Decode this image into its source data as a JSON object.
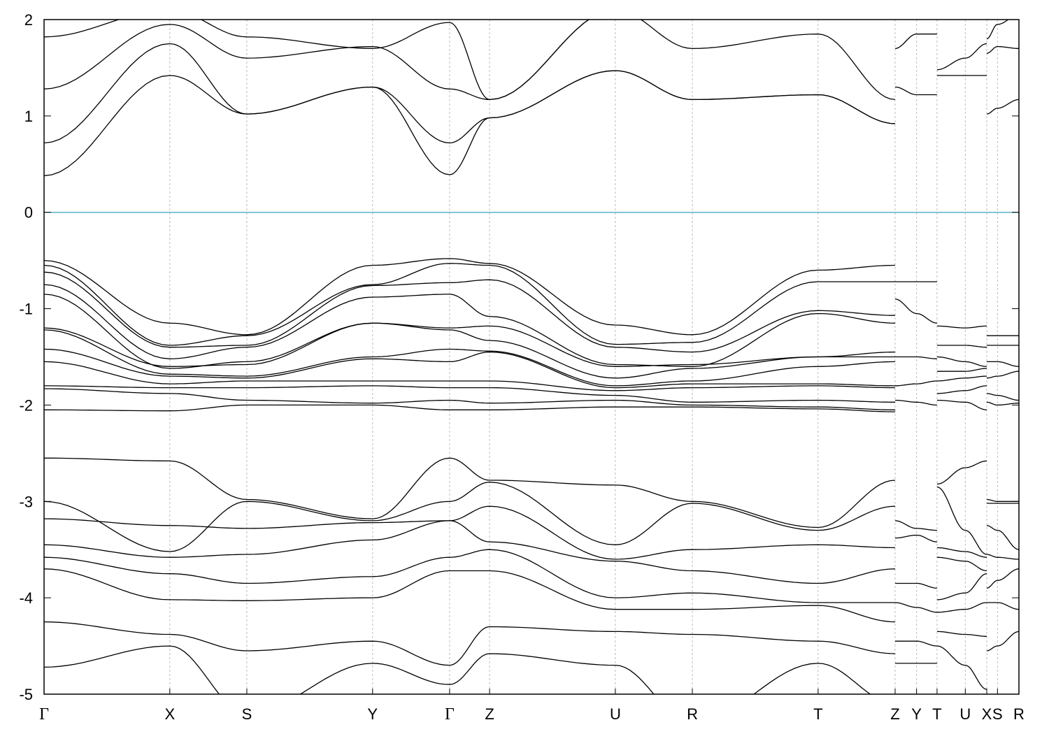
{
  "chart_data": {
    "type": "line",
    "title": "",
    "xlabel": "",
    "ylabel": "",
    "ylim": [
      -5,
      2
    ],
    "yticks": [
      2,
      1,
      0,
      -1,
      -2,
      -3,
      -4,
      -5
    ],
    "grid": "vertical dashed lines at high-symmetry k-points",
    "fermi_level": {
      "value": 0,
      "color": "#5ab4c8"
    },
    "line_color": "#000000",
    "kpoints": [
      {
        "label": "Γ",
        "x": 0.0
      },
      {
        "label": "X",
        "x": 0.129
      },
      {
        "label": "S",
        "x": 0.208
      },
      {
        "label": "Y",
        "x": 0.337
      },
      {
        "label": "Γ",
        "x": 0.416
      },
      {
        "label": "Z",
        "x": 0.457
      },
      {
        "label": "U",
        "x": 0.586
      },
      {
        "label": "R",
        "x": 0.665
      },
      {
        "label": "T",
        "x": 0.794
      },
      {
        "label": "Z",
        "x": 0.873
      },
      {
        "label": "Y",
        "x": 0.895
      },
      {
        "label": "T",
        "x": 0.916
      },
      {
        "label": "U",
        "x": 0.945
      },
      {
        "label": "X",
        "x": 0.967
      },
      {
        "label": "S",
        "x": 0.978
      },
      {
        "label": "R",
        "x": 1.0
      }
    ],
    "series": [
      {
        "x": [
          0.0,
          0.129,
          0.208,
          0.337,
          0.416,
          0.457,
          0.586,
          0.665,
          0.794,
          0.873
        ],
        "y": [
          0.38,
          1.42,
          1.02,
          1.3,
          0.39,
          0.98,
          1.47,
          1.17,
          1.22,
          0.92
        ]
      },
      {
        "x": [
          0.0,
          0.129,
          0.208,
          0.337,
          0.416,
          0.457,
          0.586,
          0.665,
          0.794,
          0.873
        ],
        "y": [
          0.72,
          1.75,
          1.02,
          1.3,
          0.72,
          0.98,
          1.47,
          1.17,
          1.22,
          0.92
        ]
      },
      {
        "x": [
          0.0,
          0.129,
          0.208,
          0.337,
          0.416,
          0.457,
          0.586,
          0.665,
          0.794,
          0.873
        ],
        "y": [
          1.28,
          1.95,
          1.6,
          1.72,
          1.28,
          1.17,
          2.1,
          1.7,
          1.85,
          1.17
        ]
      },
      {
        "x": [
          0.0,
          0.129,
          0.208,
          0.337,
          0.416,
          0.457,
          0.586
        ],
        "y": [
          1.82,
          2.1,
          1.82,
          1.7,
          1.97,
          1.17,
          2.1
        ]
      },
      {
        "x": [
          0.0,
          0.129,
          0.208,
          0.337,
          0.416,
          0.457,
          0.586,
          0.665,
          0.794,
          0.873
        ],
        "y": [
          -0.5,
          -1.15,
          -1.27,
          -0.55,
          -0.48,
          -0.53,
          -1.17,
          -1.27,
          -0.6,
          -0.55
        ]
      },
      {
        "x": [
          0.0,
          0.129,
          0.208,
          0.337,
          0.416,
          0.457,
          0.586,
          0.665,
          0.794,
          0.873
        ],
        "y": [
          -0.55,
          -1.38,
          -1.28,
          -0.75,
          -0.53,
          -0.55,
          -1.37,
          -1.35,
          -0.72,
          -0.72
        ]
      },
      {
        "x": [
          0.0,
          0.129,
          0.208,
          0.337,
          0.416,
          0.457,
          0.586,
          0.665,
          0.794,
          0.873
        ],
        "y": [
          -0.62,
          -1.4,
          -1.38,
          -0.76,
          -0.73,
          -0.7,
          -1.4,
          -1.45,
          -1.02,
          -1.07
        ]
      },
      {
        "x": [
          0.0,
          0.129,
          0.208,
          0.337,
          0.416,
          0.457,
          0.586,
          0.665,
          0.794,
          0.873
        ],
        "y": [
          -0.75,
          -1.52,
          -1.4,
          -0.88,
          -0.85,
          -1.08,
          -1.58,
          -1.6,
          -1.05,
          -1.15
        ]
      },
      {
        "x": [
          0.0,
          0.129,
          0.208,
          0.337,
          0.416,
          0.457,
          0.586,
          0.665,
          0.794,
          0.873
        ],
        "y": [
          -0.85,
          -1.62,
          -1.55,
          -1.15,
          -1.2,
          -1.18,
          -1.6,
          -1.58,
          -1.5,
          -1.45
        ]
      },
      {
        "x": [
          0.0,
          0.129,
          0.208,
          0.337,
          0.416,
          0.457,
          0.586,
          0.665,
          0.794,
          0.873
        ],
        "y": [
          -1.2,
          -1.6,
          -1.58,
          -1.15,
          -1.22,
          -1.33,
          -1.72,
          -1.62,
          -1.5,
          -1.5
        ]
      },
      {
        "x": [
          0.0,
          0.129,
          0.208,
          0.337,
          0.416,
          0.457,
          0.586,
          0.665,
          0.794,
          0.873
        ],
        "y": [
          -1.22,
          -1.68,
          -1.7,
          -1.5,
          -1.42,
          -1.44,
          -1.8,
          -1.75,
          -1.6,
          -1.55
        ]
      },
      {
        "x": [
          0.0,
          0.129,
          0.208,
          0.337,
          0.416,
          0.457,
          0.586,
          0.665,
          0.794,
          0.873
        ],
        "y": [
          -1.42,
          -1.7,
          -1.72,
          -1.52,
          -1.55,
          -1.45,
          -1.82,
          -1.78,
          -1.78,
          -1.8
        ]
      },
      {
        "x": [
          0.0,
          0.129,
          0.208,
          0.337,
          0.416,
          0.457,
          0.586,
          0.665,
          0.794,
          0.873
        ],
        "y": [
          -1.55,
          -1.78,
          -1.75,
          -1.75,
          -1.75,
          -1.75,
          -1.85,
          -1.82,
          -1.8,
          -1.82
        ]
      },
      {
        "x": [
          0.0,
          0.129,
          0.208,
          0.337,
          0.416,
          0.457,
          0.586,
          0.665,
          0.794,
          0.873
        ],
        "y": [
          -1.8,
          -1.82,
          -1.82,
          -1.8,
          -1.82,
          -1.82,
          -1.9,
          -1.97,
          -1.95,
          -1.97
        ]
      },
      {
        "x": [
          0.0,
          0.129,
          0.208,
          0.337,
          0.416,
          0.457,
          0.586,
          0.665,
          0.794,
          0.873
        ],
        "y": [
          -1.83,
          -1.88,
          -1.95,
          -1.98,
          -1.95,
          -1.98,
          -1.95,
          -2.0,
          -2.02,
          -2.05
        ]
      },
      {
        "x": [
          0.0,
          0.129,
          0.208,
          0.337,
          0.416,
          0.457,
          0.586,
          0.665,
          0.794,
          0.873
        ],
        "y": [
          -2.05,
          -2.06,
          -2.0,
          -2.0,
          -2.05,
          -2.05,
          -2.02,
          -2.02,
          -2.04,
          -2.07
        ]
      },
      {
        "x": [
          0.0,
          0.129,
          0.208,
          0.337,
          0.416,
          0.457,
          0.586,
          0.665,
          0.794,
          0.873
        ],
        "y": [
          -2.55,
          -2.58,
          -2.98,
          -3.18,
          -2.55,
          -2.78,
          -2.83,
          -3.0,
          -3.27,
          -2.78
        ]
      },
      {
        "x": [
          0.0,
          0.129,
          0.208,
          0.337,
          0.416,
          0.457,
          0.586,
          0.665,
          0.794,
          0.873
        ],
        "y": [
          -3.0,
          -3.52,
          -3.0,
          -3.2,
          -3.0,
          -2.8,
          -3.45,
          -3.02,
          -3.3,
          -3.05
        ]
      },
      {
        "x": [
          0.0,
          0.129,
          0.208,
          0.337,
          0.416,
          0.457,
          0.586,
          0.665,
          0.794,
          0.873
        ],
        "y": [
          -3.18,
          -3.25,
          -3.28,
          -3.22,
          -3.2,
          -3.05,
          -3.6,
          -3.5,
          -3.45,
          -3.48
        ]
      },
      {
        "x": [
          0.0,
          0.129,
          0.208,
          0.337,
          0.416,
          0.457,
          0.586,
          0.665,
          0.794,
          0.873
        ],
        "y": [
          -3.45,
          -3.58,
          -3.55,
          -3.4,
          -3.2,
          -3.42,
          -3.62,
          -3.72,
          -3.85,
          -3.7
        ]
      },
      {
        "x": [
          0.0,
          0.129,
          0.208,
          0.337,
          0.416,
          0.457,
          0.586,
          0.665,
          0.794,
          0.873
        ],
        "y": [
          -3.58,
          -3.75,
          -3.85,
          -3.78,
          -3.58,
          -3.5,
          -4.0,
          -3.95,
          -4.05,
          -4.05
        ]
      },
      {
        "x": [
          0.0,
          0.129,
          0.208,
          0.337,
          0.416,
          0.457,
          0.586,
          0.665,
          0.794,
          0.873
        ],
        "y": [
          -3.7,
          -4.02,
          -4.03,
          -4.0,
          -3.72,
          -3.72,
          -4.12,
          -4.12,
          -4.08,
          -4.25
        ]
      },
      {
        "x": [
          0.0,
          0.129,
          0.208,
          0.337,
          0.416,
          0.457,
          0.586,
          0.665,
          0.794,
          0.873
        ],
        "y": [
          -4.25,
          -4.38,
          -4.55,
          -4.45,
          -4.7,
          -4.3,
          -4.35,
          -4.38,
          -4.45,
          -4.58
        ]
      },
      {
        "x": [
          0.0,
          0.129,
          0.208,
          0.337,
          0.416,
          0.457,
          0.586,
          0.665,
          0.794,
          0.873
        ],
        "y": [
          -4.72,
          -4.5,
          -5.2,
          -4.68,
          -4.9,
          -4.58,
          -4.7,
          -5.3,
          -4.68,
          -5.1
        ]
      },
      {
        "x": [
          0.873,
          0.895,
          0.916
        ],
        "y": [
          1.7,
          1.85,
          1.85
        ]
      },
      {
        "x": [
          0.873,
          0.895,
          0.916
        ],
        "y": [
          1.3,
          1.22,
          1.22
        ]
      },
      {
        "x": [
          0.873,
          0.895,
          0.916
        ],
        "y": [
          -0.72,
          -0.72,
          -0.72
        ]
      },
      {
        "x": [
          0.873,
          0.895,
          0.916
        ],
        "y": [
          -0.9,
          -1.05,
          -1.15
        ]
      },
      {
        "x": [
          0.873,
          0.895,
          0.916
        ],
        "y": [
          -1.5,
          -1.5,
          -1.52
        ]
      },
      {
        "x": [
          0.873,
          0.895,
          0.916
        ],
        "y": [
          -1.8,
          -1.78,
          -1.75
        ]
      },
      {
        "x": [
          0.873,
          0.895,
          0.916
        ],
        "y": [
          -1.95,
          -1.97,
          -2.0
        ]
      },
      {
        "x": [
          0.873,
          0.895,
          0.916
        ],
        "y": [
          -3.2,
          -3.28,
          -3.3
        ]
      },
      {
        "x": [
          0.873,
          0.895,
          0.916
        ],
        "y": [
          -3.38,
          -3.35,
          -3.42
        ]
      },
      {
        "x": [
          0.873,
          0.895,
          0.916
        ],
        "y": [
          -3.85,
          -3.85,
          -3.9
        ]
      },
      {
        "x": [
          0.873,
          0.895,
          0.916
        ],
        "y": [
          -4.05,
          -4.1,
          -4.15
        ]
      },
      {
        "x": [
          0.873,
          0.895,
          0.916
        ],
        "y": [
          -4.45,
          -4.45,
          -4.5
        ]
      },
      {
        "x": [
          0.873,
          0.895,
          0.916
        ],
        "y": [
          -4.68,
          -4.68,
          -4.68
        ]
      },
      {
        "x": [
          0.916,
          0.945,
          0.967
        ],
        "y": [
          1.48,
          1.6,
          1.75
        ]
      },
      {
        "x": [
          0.916,
          0.945,
          0.967
        ],
        "y": [
          1.42,
          1.42,
          1.42
        ]
      },
      {
        "x": [
          0.916,
          0.945,
          0.967
        ],
        "y": [
          -1.18,
          -1.2,
          -1.18
        ]
      },
      {
        "x": [
          0.916,
          0.945,
          0.967
        ],
        "y": [
          -1.38,
          -1.38,
          -1.4
        ]
      },
      {
        "x": [
          0.916,
          0.945,
          0.967
        ],
        "y": [
          -1.5,
          -1.55,
          -1.6
        ]
      },
      {
        "x": [
          0.916,
          0.945,
          0.967
        ],
        "y": [
          -1.65,
          -1.65,
          -1.62
        ]
      },
      {
        "x": [
          0.916,
          0.945,
          0.967
        ],
        "y": [
          -1.75,
          -1.72,
          -1.7
        ]
      },
      {
        "x": [
          0.916,
          0.945,
          0.967
        ],
        "y": [
          -1.88,
          -1.85,
          -1.8
        ]
      },
      {
        "x": [
          0.916,
          0.945,
          0.967
        ],
        "y": [
          -1.95,
          -1.97,
          -2.05
        ]
      },
      {
        "x": [
          0.916,
          0.945,
          0.967
        ],
        "y": [
          -2.82,
          -2.65,
          -2.58
        ]
      },
      {
        "x": [
          0.916,
          0.945,
          0.967
        ],
        "y": [
          -2.85,
          -3.3,
          -3.55
        ]
      },
      {
        "x": [
          0.916,
          0.945,
          0.967
        ],
        "y": [
          -3.48,
          -3.52,
          -3.58
        ]
      },
      {
        "x": [
          0.916,
          0.945,
          0.967
        ],
        "y": [
          -3.58,
          -3.62,
          -3.72
        ]
      },
      {
        "x": [
          0.916,
          0.945,
          0.967
        ],
        "y": [
          -4.02,
          -3.95,
          -3.75
        ]
      },
      {
        "x": [
          0.916,
          0.945,
          0.967
        ],
        "y": [
          -4.15,
          -4.12,
          -4.05
        ]
      },
      {
        "x": [
          0.916,
          0.945,
          0.967
        ],
        "y": [
          -4.35,
          -4.38,
          -4.4
        ]
      },
      {
        "x": [
          0.916,
          0.945,
          0.967
        ],
        "y": [
          -4.5,
          -4.7,
          -4.95
        ]
      },
      {
        "x": [
          0.967,
          0.978,
          1.0
        ],
        "y": [
          1.02,
          1.08,
          1.17
        ]
      },
      {
        "x": [
          0.967,
          0.978,
          1.0
        ],
        "y": [
          1.65,
          1.72,
          1.7
        ]
      },
      {
        "x": [
          0.967,
          0.978,
          1.0
        ],
        "y": [
          1.8,
          1.95,
          2.05
        ]
      },
      {
        "x": [
          0.967,
          0.978,
          1.0
        ],
        "y": [
          -1.28,
          -1.28,
          -1.28
        ]
      },
      {
        "x": [
          0.967,
          0.978,
          1.0
        ],
        "y": [
          -1.38,
          -1.38,
          -1.38
        ]
      },
      {
        "x": [
          0.967,
          0.978,
          1.0
        ],
        "y": [
          -1.55,
          -1.55,
          -1.6
        ]
      },
      {
        "x": [
          0.967,
          0.978,
          1.0
        ],
        "y": [
          -1.72,
          -1.7,
          -1.65
        ]
      },
      {
        "x": [
          0.967,
          0.978,
          1.0
        ],
        "y": [
          -1.88,
          -1.9,
          -1.95
        ]
      },
      {
        "x": [
          0.967,
          0.978,
          1.0
        ],
        "y": [
          -1.97,
          -2.0,
          -1.98
        ]
      },
      {
        "x": [
          0.967,
          0.978,
          1.0
        ],
        "y": [
          -2.98,
          -3.0,
          -3.0
        ]
      },
      {
        "x": [
          0.967,
          0.978,
          1.0
        ],
        "y": [
          -3.02,
          -3.02,
          -3.02
        ]
      },
      {
        "x": [
          0.967,
          0.978,
          1.0
        ],
        "y": [
          -3.25,
          -3.3,
          -3.5
        ]
      },
      {
        "x": [
          0.967,
          0.978,
          1.0
        ],
        "y": [
          -3.55,
          -3.58,
          -3.6
        ]
      },
      {
        "x": [
          0.967,
          0.978,
          1.0
        ],
        "y": [
          -3.9,
          -3.82,
          -3.7
        ]
      },
      {
        "x": [
          0.967,
          0.978,
          1.0
        ],
        "y": [
          -4.05,
          -4.05,
          -4.12
        ]
      },
      {
        "x": [
          0.967,
          0.978,
          1.0
        ],
        "y": [
          -4.55,
          -4.5,
          -4.35
        ]
      }
    ]
  }
}
